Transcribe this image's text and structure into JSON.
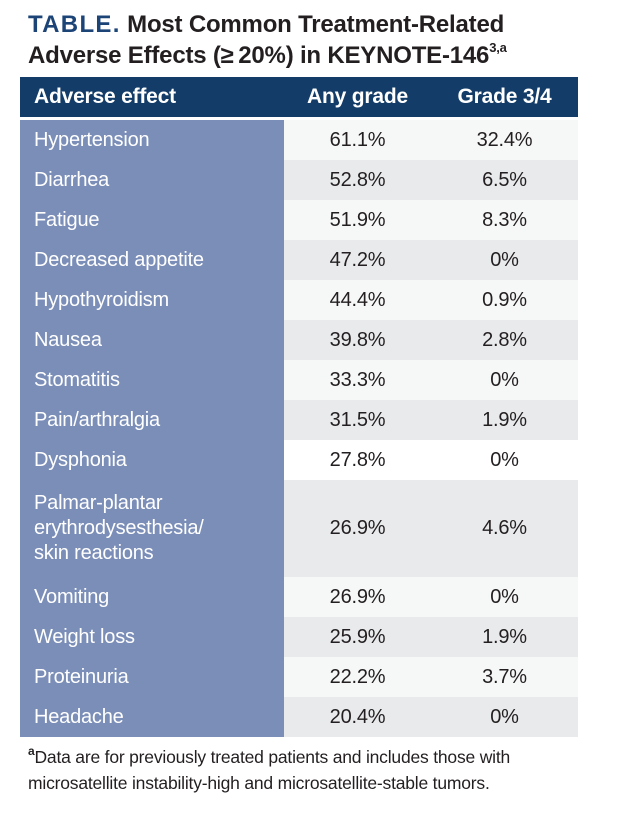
{
  "title": {
    "kicker": "TABLE.",
    "text": " Most Common Treatment-Related Adverse Effects (≥ 20%) in KEYNOTE-146",
    "superscript": "3,a"
  },
  "table": {
    "header": {
      "effect": "Adverse effect",
      "any_grade": "Any grade",
      "grade34": "Grade 3/4"
    },
    "rows": [
      {
        "effect": "Hypertension",
        "any_grade": "61.1%",
        "grade34": "32.4%",
        "shade": "light"
      },
      {
        "effect": "Diarrhea",
        "any_grade": "52.8%",
        "grade34": "6.5%",
        "shade": "dark"
      },
      {
        "effect": "Fatigue",
        "any_grade": "51.9%",
        "grade34": "8.3%",
        "shade": "light"
      },
      {
        "effect": "Decreased appetite",
        "any_grade": "47.2%",
        "grade34": "0%",
        "shade": "dark"
      },
      {
        "effect": "Hypothyroidism",
        "any_grade": "44.4%",
        "grade34": "0.9%",
        "shade": "light"
      },
      {
        "effect": "Nausea",
        "any_grade": "39.8%",
        "grade34": "2.8%",
        "shade": "dark"
      },
      {
        "effect": "Stomatitis",
        "any_grade": "33.3%",
        "grade34": "0%",
        "shade": "light"
      },
      {
        "effect": "Pain/arthralgia",
        "any_grade": "31.5%",
        "grade34": "1.9%",
        "shade": "dark"
      },
      {
        "effect": "Dysphonia",
        "any_grade": "27.8%",
        "grade34": "0%",
        "shade": "white"
      },
      {
        "effect": "Palmar-plantar\nerythrodysesthesia/\nskin reactions",
        "any_grade": "26.9%",
        "grade34": "4.6%",
        "shade": "dark"
      },
      {
        "effect": "Vomiting",
        "any_grade": "26.9%",
        "grade34": "0%",
        "shade": "light"
      },
      {
        "effect": "Weight loss",
        "any_grade": "25.9%",
        "grade34": "1.9%",
        "shade": "dark"
      },
      {
        "effect": "Proteinuria",
        "any_grade": "22.2%",
        "grade34": "3.7%",
        "shade": "light"
      },
      {
        "effect": "Headache",
        "any_grade": "20.4%",
        "grade34": "0%",
        "shade": "dark"
      }
    ]
  },
  "footnote": {
    "superscript": "a",
    "text": "Data are for previously treated patients and includes those with microsatellite instability-high and microsatellite-stable tumors."
  },
  "colors": {
    "header_navy": "#133d68",
    "title_navy": "#1c4477",
    "effect_column_blue": "#7b8eb8",
    "stripe_light": "#f6f7f7",
    "stripe_dark": "#e9eaec",
    "stripe_white": "#ffffff",
    "text_dark": "#231f20",
    "text_white": "#ffffff"
  },
  "chart_data": {
    "type": "table",
    "title": "TABLE. Most Common Treatment-Related Adverse Effects (≥ 20%) in KEYNOTE-146 (superscript 3,a)",
    "columns": [
      "Adverse effect",
      "Any grade",
      "Grade 3/4"
    ],
    "units": "%",
    "rows": [
      [
        "Hypertension",
        61.1,
        32.4
      ],
      [
        "Diarrhea",
        52.8,
        6.5
      ],
      [
        "Fatigue",
        51.9,
        8.3
      ],
      [
        "Decreased appetite",
        47.2,
        0
      ],
      [
        "Hypothyroidism",
        44.4,
        0.9
      ],
      [
        "Nausea",
        39.8,
        2.8
      ],
      [
        "Stomatitis",
        33.3,
        0
      ],
      [
        "Pain/arthralgia",
        31.5,
        1.9
      ],
      [
        "Dysphonia",
        27.8,
        0
      ],
      [
        "Palmar-plantar erythrodysesthesia/skin reactions",
        26.9,
        4.6
      ],
      [
        "Vomiting",
        26.9,
        0
      ],
      [
        "Weight loss",
        25.9,
        1.9
      ],
      [
        "Proteinuria",
        22.2,
        3.7
      ],
      [
        "Headache",
        20.4,
        0
      ]
    ],
    "footnote": "a: Data are for previously treated patients and includes those with microsatellite instability-high and microsatellite-stable tumors."
  }
}
